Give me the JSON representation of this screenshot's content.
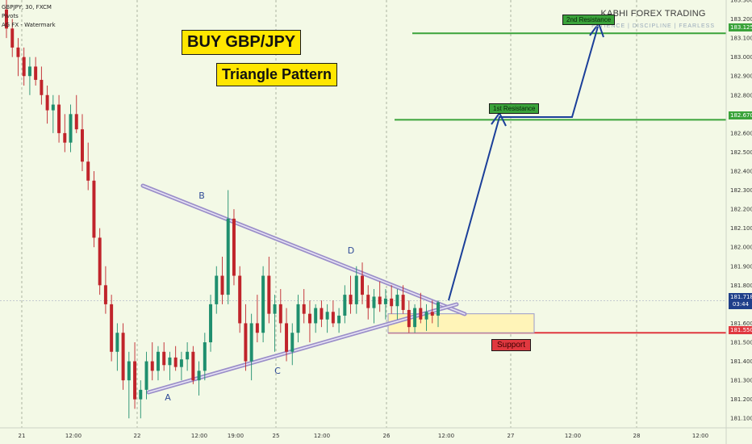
{
  "header": {
    "symbol_line": "GBPJPY, 30, FXCM",
    "indicator_1": "Pivots",
    "indicator_2": "AG FX - Watermark"
  },
  "titles": {
    "main": "BUY GBP/JPY",
    "pattern": "Triangle Pattern"
  },
  "brand": {
    "name": "KABHI FOREX TRADING",
    "slogan": "PATIENCE | DISCIPLINE | FEARLESS"
  },
  "colors": {
    "background": "#f3f9e6",
    "bull": "#1f8f6e",
    "bear": "#c0242b",
    "resistance": "#3aa33a",
    "support": "#e0383f",
    "arrow": "#1b3f99",
    "triangle": "#9b8fc9"
  },
  "chart_data": {
    "type": "candlestick",
    "title": "",
    "ylabel": "",
    "ylim": [
      181.05,
      183.3
    ],
    "y_ticks": [
      183.3,
      183.2,
      183.1,
      183.0,
      182.9,
      182.8,
      182.7,
      182.6,
      182.5,
      182.4,
      182.3,
      182.2,
      182.1,
      182.0,
      181.9,
      181.8,
      181.7,
      181.6,
      181.5,
      181.4,
      181.3,
      181.2,
      181.1
    ],
    "y_tick_labels": [
      "183.300",
      "183.200",
      "183.100",
      "183.000",
      "182.900",
      "182.800",
      "182.700",
      "182.600",
      "182.500",
      "182.400",
      "182.300",
      "182.200",
      "182.100",
      "182.000",
      "181.900",
      "181.800",
      "181.700",
      "181.600",
      "181.500",
      "181.400",
      "181.300",
      "181.200",
      "181.100"
    ],
    "x_tick_labels": [
      "21",
      "12:00",
      "22",
      "12:00",
      "19:00",
      "25",
      "12:00",
      "26",
      "12:00",
      "27",
      "12:00",
      "28",
      "12:00"
    ],
    "levels": {
      "resistance_2": {
        "label": "2nd Resistance",
        "price_label": "183.125",
        "value": 183.125
      },
      "resistance_1": {
        "label": "1st Resistance",
        "price_label": "182.670",
        "value": 182.67
      },
      "support": {
        "label": "Support",
        "price_label": "181.550",
        "value": 181.55
      },
      "current": {
        "price_label": "181.718",
        "countdown": "03:44",
        "value": 181.718
      }
    },
    "pattern_points": [
      {
        "label": "A"
      },
      {
        "label": "B"
      },
      {
        "label": "C"
      },
      {
        "label": "D"
      }
    ],
    "candles": [
      [
        183.25,
        183.3,
        183.1,
        183.15
      ],
      [
        183.15,
        183.2,
        183.0,
        183.05
      ],
      [
        183.05,
        183.1,
        182.9,
        183.0
      ],
      [
        183.0,
        183.05,
        182.85,
        182.9
      ],
      [
        182.9,
        183.0,
        182.8,
        182.95
      ],
      [
        182.95,
        183.0,
        182.85,
        182.88
      ],
      [
        182.88,
        182.95,
        182.75,
        182.8
      ],
      [
        182.8,
        182.85,
        182.65,
        182.72
      ],
      [
        182.72,
        182.8,
        182.6,
        182.75
      ],
      [
        182.75,
        182.8,
        182.55,
        182.6
      ],
      [
        182.6,
        182.7,
        182.5,
        182.55
      ],
      [
        182.55,
        182.75,
        182.5,
        182.7
      ],
      [
        182.7,
        182.8,
        182.6,
        182.62
      ],
      [
        182.62,
        182.7,
        182.4,
        182.45
      ],
      [
        182.45,
        182.55,
        182.3,
        182.35
      ],
      [
        182.35,
        182.4,
        182.0,
        182.05
      ],
      [
        182.05,
        182.1,
        181.75,
        181.8
      ],
      [
        181.8,
        181.9,
        181.65,
        181.7
      ],
      [
        181.7,
        181.75,
        181.4,
        181.45
      ],
      [
        181.45,
        181.6,
        181.35,
        181.55
      ],
      [
        181.55,
        181.6,
        181.25,
        181.3
      ],
      [
        181.3,
        181.45,
        181.1,
        181.4
      ],
      [
        181.4,
        181.5,
        181.15,
        181.2
      ],
      [
        181.2,
        181.3,
        181.1,
        181.25
      ],
      [
        181.25,
        181.45,
        181.2,
        181.4
      ],
      [
        181.4,
        181.5,
        181.3,
        181.35
      ],
      [
        181.35,
        181.48,
        181.3,
        181.45
      ],
      [
        181.45,
        181.5,
        181.35,
        181.38
      ],
      [
        181.38,
        181.45,
        181.3,
        181.42
      ],
      [
        181.42,
        181.48,
        181.35,
        181.37
      ],
      [
        181.37,
        181.45,
        181.3,
        181.41
      ],
      [
        181.41,
        181.5,
        181.35,
        181.45
      ],
      [
        181.45,
        181.48,
        181.28,
        181.3
      ],
      [
        181.3,
        181.4,
        181.22,
        181.35
      ],
      [
        181.35,
        181.55,
        181.3,
        181.5
      ],
      [
        181.5,
        181.75,
        181.45,
        181.7
      ],
      [
        181.7,
        181.9,
        181.65,
        181.85
      ],
      [
        181.85,
        181.95,
        181.7,
        181.75
      ],
      [
        181.75,
        182.3,
        181.7,
        182.15
      ],
      [
        182.15,
        182.2,
        181.8,
        181.85
      ],
      [
        181.85,
        181.9,
        181.55,
        181.6
      ],
      [
        181.6,
        181.7,
        181.35,
        181.4
      ],
      [
        181.4,
        181.65,
        181.3,
        181.6
      ],
      [
        181.6,
        181.75,
        181.5,
        181.55
      ],
      [
        181.55,
        181.9,
        181.5,
        181.85
      ],
      [
        181.85,
        181.95,
        181.6,
        181.65
      ],
      [
        181.65,
        181.75,
        181.45,
        181.7
      ],
      [
        181.7,
        181.78,
        181.55,
        181.6
      ],
      [
        181.6,
        181.68,
        181.4,
        181.45
      ],
      [
        181.45,
        181.6,
        181.38,
        181.55
      ],
      [
        181.55,
        181.75,
        181.5,
        181.7
      ],
      [
        181.7,
        181.78,
        181.6,
        181.65
      ],
      [
        181.65,
        181.72,
        181.5,
        181.6
      ],
      [
        181.6,
        181.7,
        181.55,
        181.68
      ],
      [
        181.68,
        181.72,
        181.58,
        181.62
      ],
      [
        181.62,
        181.7,
        181.55,
        181.66
      ],
      [
        181.66,
        181.72,
        181.58,
        181.6
      ],
      [
        181.6,
        181.68,
        181.55,
        181.64
      ],
      [
        181.64,
        181.8,
        181.6,
        181.75
      ],
      [
        181.75,
        181.85,
        181.65,
        181.7
      ],
      [
        181.7,
        181.9,
        181.65,
        181.85
      ],
      [
        181.85,
        181.92,
        181.7,
        181.75
      ],
      [
        181.75,
        181.8,
        181.62,
        181.68
      ],
      [
        181.68,
        181.78,
        181.6,
        181.74
      ],
      [
        181.74,
        181.82,
        181.66,
        181.7
      ],
      [
        181.7,
        181.78,
        181.62,
        181.73
      ],
      [
        181.73,
        181.8,
        181.65,
        181.69
      ],
      [
        181.69,
        181.78,
        181.62,
        181.75
      ],
      [
        181.75,
        181.8,
        181.65,
        181.67
      ],
      [
        181.67,
        181.72,
        181.55,
        181.58
      ],
      [
        181.58,
        181.7,
        181.55,
        181.68
      ],
      [
        181.68,
        181.76,
        181.6,
        181.62
      ],
      [
        181.62,
        181.7,
        181.56,
        181.66
      ],
      [
        181.66,
        181.72,
        181.6,
        181.64
      ],
      [
        181.64,
        181.72,
        181.58,
        181.71
      ]
    ]
  }
}
